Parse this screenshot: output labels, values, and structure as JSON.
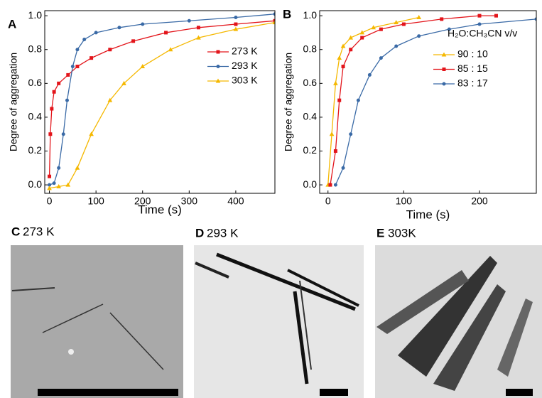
{
  "chart_data": [
    {
      "type": "line",
      "panel": "A",
      "xlabel": "Time (s)",
      "ylabel": "Degree of aggregation",
      "xlim": [
        -10,
        484
      ],
      "ylim": [
        -0.05,
        1.03
      ],
      "xticks": [
        0,
        100,
        200,
        300,
        400
      ],
      "yticks": [
        {
          "value": 0,
          "label": "0.0"
        },
        0.2,
        0.4,
        0.6,
        0.8,
        {
          "value": 1,
          "label": "1.0"
        }
      ],
      "legend": "right",
      "series": [
        {
          "name": "273 K",
          "color": "#e3151b",
          "marker": "square",
          "x": [
            0,
            2,
            5,
            10,
            20,
            40,
            60,
            90,
            130,
            180,
            250,
            320,
            400,
            484
          ],
          "values": [
            0.05,
            0.3,
            0.45,
            0.55,
            0.6,
            0.65,
            0.7,
            0.75,
            0.8,
            0.85,
            0.9,
            0.93,
            0.95,
            0.97
          ]
        },
        {
          "name": "293 K",
          "color": "#3a6aa6",
          "marker": "circle",
          "x": [
            0,
            10,
            20,
            30,
            38,
            50,
            60,
            75,
            100,
            150,
            200,
            300,
            400,
            484
          ],
          "values": [
            0,
            0.01,
            0.1,
            0.3,
            0.5,
            0.7,
            0.8,
            0.86,
            0.9,
            0.93,
            0.95,
            0.97,
            0.99,
            1.01
          ]
        },
        {
          "name": "303 K",
          "color": "#f5b800",
          "marker": "triangle",
          "x": [
            0,
            20,
            40,
            60,
            90,
            130,
            160,
            200,
            260,
            320,
            400,
            484
          ],
          "values": [
            -0.02,
            -0.01,
            0,
            0.1,
            0.3,
            0.5,
            0.6,
            0.7,
            0.8,
            0.87,
            0.92,
            0.96
          ]
        }
      ]
    },
    {
      "type": "line",
      "panel": "B",
      "xlabel": "Time (s)",
      "ylabel": "Degree of aggregation",
      "xlim": [
        -11,
        275
      ],
      "ylim": [
        -0.05,
        1.03
      ],
      "xticks": [
        0,
        100,
        200
      ],
      "yticks": [
        {
          "value": 0,
          "label": "0.0"
        },
        0.2,
        0.4,
        0.6,
        0.8,
        {
          "value": 1,
          "label": "1.0"
        }
      ],
      "legend": "right",
      "legend_title": "H₂O:CH₃CN v/v",
      "series": [
        {
          "name": "90 : 10",
          "color": "#f5b800",
          "marker": "triangle",
          "x": [
            0,
            5,
            10,
            15,
            20,
            30,
            45,
            60,
            90,
            120
          ],
          "values": [
            0,
            0.3,
            0.6,
            0.75,
            0.82,
            0.87,
            0.9,
            0.93,
            0.96,
            0.99
          ]
        },
        {
          "name": "85 : 15",
          "color": "#e3151b",
          "marker": "square",
          "x": [
            3,
            10,
            15,
            20,
            30,
            45,
            70,
            100,
            150,
            200,
            222
          ],
          "values": [
            0,
            0.2,
            0.5,
            0.7,
            0.8,
            0.87,
            0.92,
            0.95,
            0.98,
            1.0,
            1.0
          ]
        },
        {
          "name": "83 : 17",
          "color": "#3a6aa6",
          "marker": "circle",
          "x": [
            10,
            20,
            30,
            40,
            55,
            70,
            90,
            120,
            160,
            200,
            275
          ],
          "values": [
            0,
            0.1,
            0.3,
            0.5,
            0.65,
            0.75,
            0.82,
            0.88,
            0.92,
            0.95,
            0.98
          ]
        }
      ]
    }
  ],
  "images": [
    {
      "label": "C",
      "caption": "273 K"
    },
    {
      "label": "D",
      "caption": "293 K"
    },
    {
      "label": "E",
      "caption": "303K"
    }
  ]
}
